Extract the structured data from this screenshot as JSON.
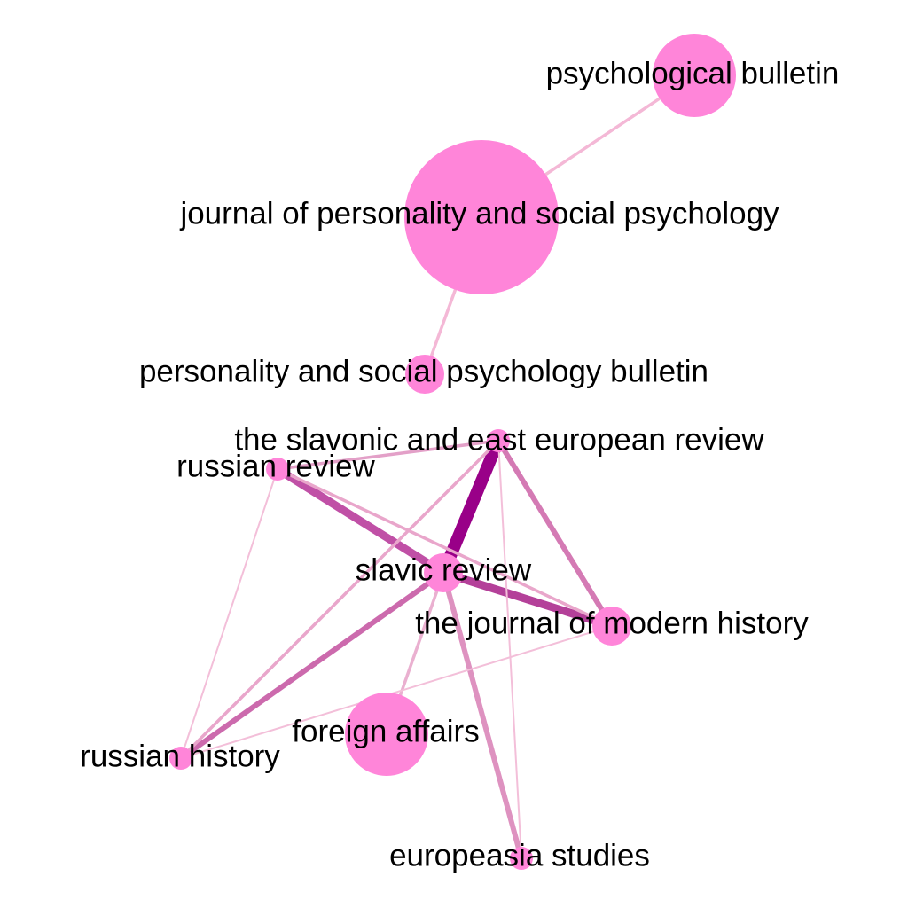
{
  "graph": {
    "type": "network",
    "node_color": "#ff85d9",
    "nodes": [
      {
        "id": "psych_bulletin",
        "label": "psychological bulletin",
        "size": "medium"
      },
      {
        "id": "jpsp",
        "label": "journal of personality and social psychology",
        "size": "large"
      },
      {
        "id": "pspb",
        "label": "personality and social psychology bulletin",
        "size": "small"
      },
      {
        "id": "seer",
        "label": "the slavonic and east european review",
        "size": "tiny"
      },
      {
        "id": "russian_review",
        "label": "russian review",
        "size": "tiny"
      },
      {
        "id": "slavic_review",
        "label": "slavic review",
        "size": "small"
      },
      {
        "id": "jmh",
        "label": "the journal of modern history",
        "size": "small"
      },
      {
        "id": "foreign_affairs",
        "label": "foreign affairs",
        "size": "medium"
      },
      {
        "id": "russian_history",
        "label": "russian history",
        "size": "tiny"
      },
      {
        "id": "europeasia",
        "label": "europeasia studies",
        "size": "tiny"
      }
    ],
    "edges": [
      {
        "source": "psych_bulletin",
        "target": "jpsp",
        "weight": "light",
        "color": "#f4b8d6"
      },
      {
        "source": "jpsp",
        "target": "pspb",
        "weight": "light",
        "color": "#f4b8d6"
      },
      {
        "source": "seer",
        "target": "slavic_review",
        "weight": "heaviest",
        "color": "#990088"
      },
      {
        "source": "russian_review",
        "target": "slavic_review",
        "weight": "heavy",
        "color": "#c050a6"
      },
      {
        "source": "slavic_review",
        "target": "jmh",
        "weight": "heavy",
        "color": "#b44099"
      },
      {
        "source": "seer",
        "target": "jmh",
        "weight": "medium",
        "color": "#d47ab4"
      },
      {
        "source": "slavic_review",
        "target": "russian_history",
        "weight": "medium",
        "color": "#cc6aad"
      },
      {
        "source": "slavic_review",
        "target": "europeasia",
        "weight": "medium",
        "color": "#de92c0"
      },
      {
        "source": "seer",
        "target": "russian_review",
        "weight": "light",
        "color": "#e3a0c8"
      },
      {
        "source": "russian_review",
        "target": "jmh",
        "weight": "light",
        "color": "#e9a6cb"
      },
      {
        "source": "seer",
        "target": "russian_history",
        "weight": "light",
        "color": "#e9a6cb"
      },
      {
        "source": "slavic_review",
        "target": "foreign_affairs",
        "weight": "light",
        "color": "#eab0d0"
      },
      {
        "source": "russian_history",
        "target": "jmh",
        "weight": "thin",
        "color": "#f3bfd9"
      },
      {
        "source": "russian_review",
        "target": "russian_history",
        "weight": "thin",
        "color": "#f3bfd9"
      },
      {
        "source": "seer",
        "target": "europeasia",
        "weight": "thin",
        "color": "#f3bfd9"
      }
    ]
  }
}
